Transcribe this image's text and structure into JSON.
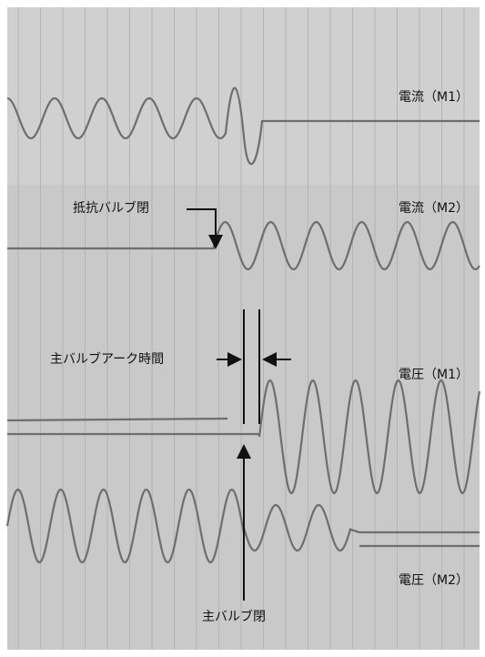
{
  "labels": {
    "current_m1": "電流（M1）",
    "current_m2": "電流（M2）",
    "resistor_valve_close": "抵抗バルブ閉",
    "main_valve_arc_time": "主バルブアーク時間",
    "voltage_m1": "電圧（M1）",
    "voltage_m2": "電圧（M2）",
    "main_valve_close": "主バルブ閉"
  }
}
